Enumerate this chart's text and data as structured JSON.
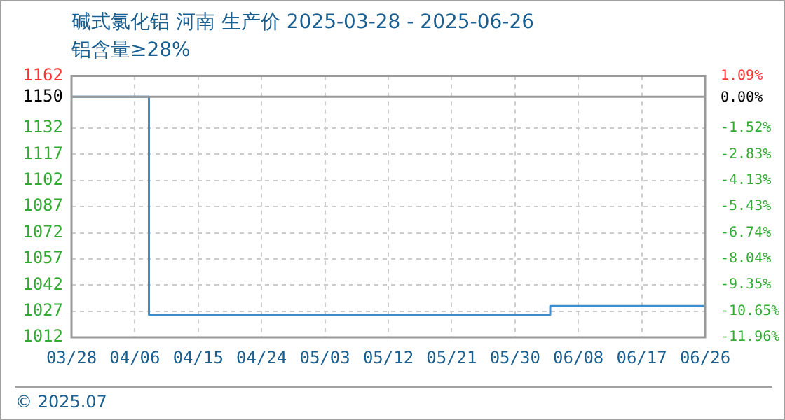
{
  "chart_data": {
    "type": "step",
    "title": "碱式氯化铝 河南 生产价 2025-03-28 - 2025-06-26",
    "subtitle": "铝含量≥28%",
    "annotations": [
      "© 2025.07"
    ],
    "x": [
      "2025-03-28",
      "2025-04-07",
      "2025-04-08",
      "2025-06-03",
      "2025-06-04",
      "2025-06-26"
    ],
    "series": [
      {
        "color": "#3b8fd0",
        "values": [
          1150,
          1150,
          1025,
          1025,
          1030,
          1030
        ]
      }
    ],
    "xlim": [
      "2025-03-28",
      "2025-06-26"
    ],
    "xticks": [
      {
        "value": "2025-03-28",
        "label": "03/28"
      },
      {
        "value": "2025-04-06",
        "label": "04/06"
      },
      {
        "value": "2025-04-15",
        "label": "04/15"
      },
      {
        "value": "2025-04-24",
        "label": "04/24"
      },
      {
        "value": "2025-05-03",
        "label": "05/03"
      },
      {
        "value": "2025-05-12",
        "label": "05/12"
      },
      {
        "value": "2025-05-21",
        "label": "05/21"
      },
      {
        "value": "2025-05-30",
        "label": "05/30"
      },
      {
        "value": "2025-06-08",
        "label": "06/08"
      },
      {
        "value": "2025-06-17",
        "label": "06/17"
      },
      {
        "value": "2025-06-26",
        "label": "06/26"
      }
    ],
    "ylim": [
      1012,
      1162
    ],
    "yticks": [
      1012,
      1027,
      1042,
      1057,
      1072,
      1087,
      1102,
      1117,
      1132,
      1150,
      1162
    ],
    "y2lim": [
      -11.96,
      1.09
    ],
    "y2ticks": [
      {
        "value": -11.96,
        "label": "-11.96%"
      },
      {
        "value": -10.65,
        "label": "-10.65%"
      },
      {
        "value": -9.35,
        "label": "-9.35%"
      },
      {
        "value": -8.04,
        "label": "-8.04%"
      },
      {
        "value": -6.74,
        "label": "-6.74%"
      },
      {
        "value": -5.43,
        "label": "-5.43%"
      },
      {
        "value": -4.13,
        "label": "-4.13%"
      },
      {
        "value": -2.83,
        "label": "-2.83%"
      },
      {
        "value": -1.52,
        "label": "-1.52%"
      },
      {
        "value": 0,
        "label": "0.00%"
      },
      {
        "value": 1.09,
        "label": "1.09%"
      }
    ],
    "ref_lines": [
      {
        "axis": "y",
        "value": 1150,
        "color": "#999999"
      }
    ],
    "grid": true,
    "line_style": "solid",
    "marker": "none"
  }
}
